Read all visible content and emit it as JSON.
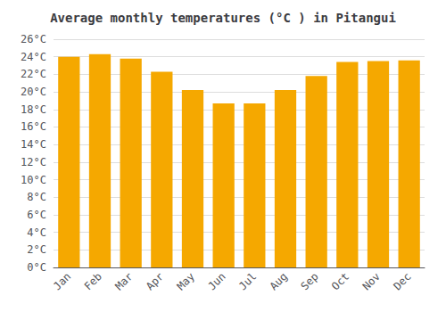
{
  "chart_data": {
    "type": "bar",
    "title": "Average monthly temperatures (°C ) in Pitangui",
    "categories": [
      "Jan",
      "Feb",
      "Mar",
      "Apr",
      "May",
      "Jun",
      "Jul",
      "Aug",
      "Sep",
      "Oct",
      "Nov",
      "Dec"
    ],
    "values": [
      24.0,
      24.3,
      23.8,
      22.3,
      20.2,
      18.7,
      18.7,
      20.2,
      21.8,
      23.4,
      23.5,
      23.6
    ],
    "color": "#F5A800",
    "ylim": [
      0,
      26
    ],
    "yticks": [
      {
        "value": 0,
        "label": "0°C"
      },
      {
        "value": 2,
        "label": "2°C"
      },
      {
        "value": 4,
        "label": "4°C"
      },
      {
        "value": 6,
        "label": "6°C"
      },
      {
        "value": 8,
        "label": "8°C"
      },
      {
        "value": 10,
        "label": "10°C"
      },
      {
        "value": 12,
        "label": "12°C"
      },
      {
        "value": 14,
        "label": "14°C"
      },
      {
        "value": 16,
        "label": "16°C"
      },
      {
        "value": 18,
        "label": "18°C"
      },
      {
        "value": 20,
        "label": "20°C"
      },
      {
        "value": 22,
        "label": "22°C"
      },
      {
        "value": 24,
        "label": "24°C"
      },
      {
        "value": 26,
        "label": "26°C"
      }
    ],
    "grid": true
  }
}
